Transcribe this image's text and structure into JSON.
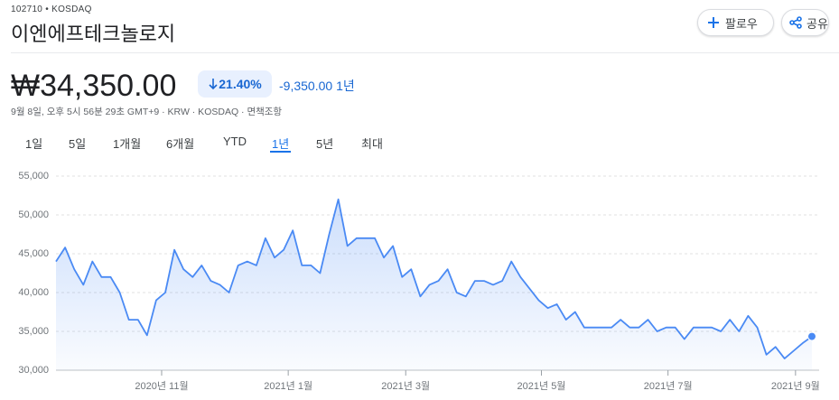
{
  "header": {
    "ticker": "102710 • KOSDAQ",
    "title": "이엔에프테크놀로지",
    "buttons": [
      "팔로우",
      "공유"
    ]
  },
  "quote": {
    "price": "₩34,350.00",
    "change_percent": "21.40%",
    "change": "-9,350.00",
    "period": "1년",
    "timestamp": "9월 8일, 오후 5시 56분 29초 GMT+9 · KRW · KOSDAQ · 면책조항"
  },
  "tabs": [
    "1일",
    "5일",
    "1개월",
    "6개월",
    "YTD",
    "1년",
    "5년",
    "최대"
  ],
  "selected_tab": "1년",
  "chart_data": {
    "type": "line",
    "color": "#4a8af4",
    "grid": true,
    "values": [
      44000,
      45800,
      43000,
      41000,
      44000,
      42000,
      42000,
      40000,
      36500,
      36500,
      34500,
      39000,
      40000,
      45500,
      43000,
      42000,
      43500,
      41500,
      41000,
      40000,
      43500,
      44000,
      43500,
      47000,
      44500,
      45500,
      48000,
      43500,
      43500,
      42500,
      47500,
      52000,
      46000,
      47000,
      47000,
      47000,
      44500,
      46000,
      42000,
      43000,
      39500,
      41000,
      41500,
      43000,
      40000,
      39500,
      41500,
      41500,
      41000,
      41500,
      44000,
      42000,
      40500,
      39000,
      38000,
      38500,
      36500,
      37500,
      35500,
      35500,
      35500,
      35500,
      36500,
      35500,
      35500,
      36500,
      35000,
      35500,
      35500,
      34000,
      35500,
      35500,
      35500,
      35000,
      36500,
      35000,
      37000,
      35500,
      32000,
      33000,
      31500,
      32500,
      33500,
      34350
    ],
    "xlim": [
      0,
      83
    ],
    "xticks": [
      {
        "value": 11.6,
        "label": "2020년 11월"
      },
      {
        "value": 25.5,
        "label": "2021년 1월"
      },
      {
        "value": 38.4,
        "label": "2021년 3월"
      },
      {
        "value": 53.3,
        "label": "2021년 5월"
      },
      {
        "value": 67.2,
        "label": "2021년 7월"
      },
      {
        "value": 81.2,
        "label": "2021년 9월"
      }
    ],
    "ylim": [
      30000,
      55000
    ],
    "yticks": [
      {
        "value": 30000,
        "label": "30,000"
      },
      {
        "value": 35000,
        "label": "35,000"
      },
      {
        "value": 40000,
        "label": "40,000"
      },
      {
        "value": 45000,
        "label": "45,000"
      },
      {
        "value": 50000,
        "label": "50,000"
      },
      {
        "value": 55000,
        "label": "55,000"
      }
    ]
  }
}
